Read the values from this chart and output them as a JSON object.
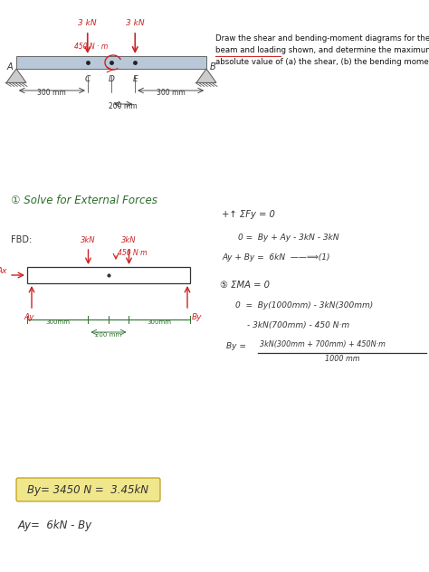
{
  "bg_color": "#ffffff",
  "beam_color": "#b8c8d8",
  "force_color": "#cc2222",
  "dark_color": "#333333",
  "green_color": "#2a6e2a",
  "highlight_color": "#f0e68c",
  "highlight_border": "#b8960c",
  "support_color": "#aaaaaa",
  "top_text": "Draw the shear and bending-moment diagrams for the\nbeam and loading shown, and determine the maximum\nabsolute value of (a) the shear, (b) the bending moment.",
  "section_label": "① Solve for External Forces",
  "eq8_text": "By= 3450 N =  3.45kN",
  "eq9_text": "Ay=  6kN - By"
}
